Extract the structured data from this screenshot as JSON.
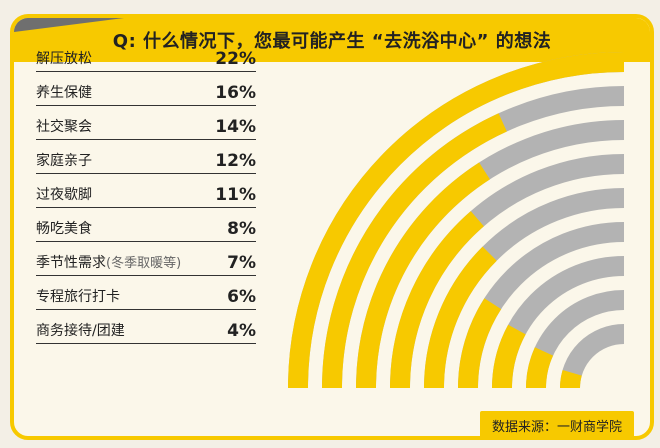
{
  "title": "Q: 什么情况下，您最可能产生 “去洗浴中心” 的想法",
  "source": "数据来源：一财商学院",
  "colors": {
    "accent": "#f7c900",
    "track": "#b3b3b3",
    "background": "#fbf7ea"
  },
  "chart_data": {
    "type": "bar",
    "subtype": "radial-bar",
    "title": "Q: 什么情况下，您最可能产生 “去洗浴中心” 的想法",
    "categories": [
      "解压放松",
      "养生保健",
      "社交聚会",
      "家庭亲子",
      "过夜歇脚",
      "畅吃美食",
      "季节性需求",
      "专程旅行打卡",
      "商务接待/团建"
    ],
    "category_notes": [
      "",
      "",
      "",
      "",
      "",
      "",
      "(冬季取暖等)",
      "",
      ""
    ],
    "value_labels": [
      "22%",
      "16%",
      "14%",
      "12%",
      "11%",
      "8%",
      "7%",
      "6%",
      "4%"
    ],
    "values": [
      22,
      16,
      14,
      12,
      11,
      8,
      7,
      6,
      4
    ],
    "scale_max": 22
  }
}
